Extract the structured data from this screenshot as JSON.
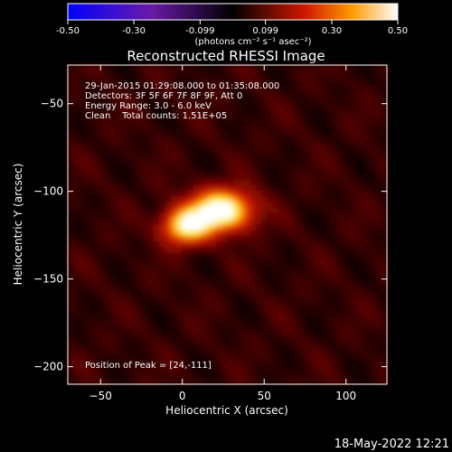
{
  "colorbar": {
    "tick_labels": [
      "-0.50",
      "-0.30",
      "-0.099",
      "0.099",
      "0.30",
      "0.50"
    ],
    "tick_values": [
      -0.5,
      -0.3,
      -0.099,
      0.099,
      0.3,
      0.5
    ],
    "range": [
      -0.5,
      0.5
    ],
    "units": "(photons cm⁻² s⁻¹ asec⁻²)",
    "colormap": "blue-purple-black-red-orange-yellow-white"
  },
  "chart_data": {
    "type": "heatmap",
    "title": "Reconstructed RHESSI Image",
    "xlabel": "Heliocentric X (arcsec)",
    "ylabel": "Heliocentric Y (arcsec)",
    "xlim": [
      -70,
      125
    ],
    "ylim": [
      -210,
      -28
    ],
    "x_ticks": [
      -50,
      0,
      50,
      100
    ],
    "y_ticks": [
      -50,
      -100,
      -150,
      -200
    ],
    "x_tick_labels": [
      "−50",
      "0",
      "50",
      "100"
    ],
    "y_tick_labels": [
      "−50",
      "−100",
      "−150",
      "−200"
    ],
    "annotations": [
      "29-Jan-2015 01:29:08.000 to 01:35:08.000",
      "Detectors: 3F 5F 6F 7F 8F 9F, Att 0",
      "Energy Range: 3.0 - 6.0 keV",
      "Clean    Total counts: 1.51E+05"
    ],
    "peak_label": "Position of Peak = [24,-111]",
    "peak": [
      24,
      -111
    ],
    "sources": [
      {
        "x": 24,
        "y": -111,
        "amp": 0.5,
        "sx": 13,
        "sy": 8
      },
      {
        "x": 2,
        "y": -120,
        "amp": 0.4,
        "sx": 10,
        "sy": 7
      }
    ],
    "grid": false
  },
  "timestamp": "18-May-2022 12:21"
}
